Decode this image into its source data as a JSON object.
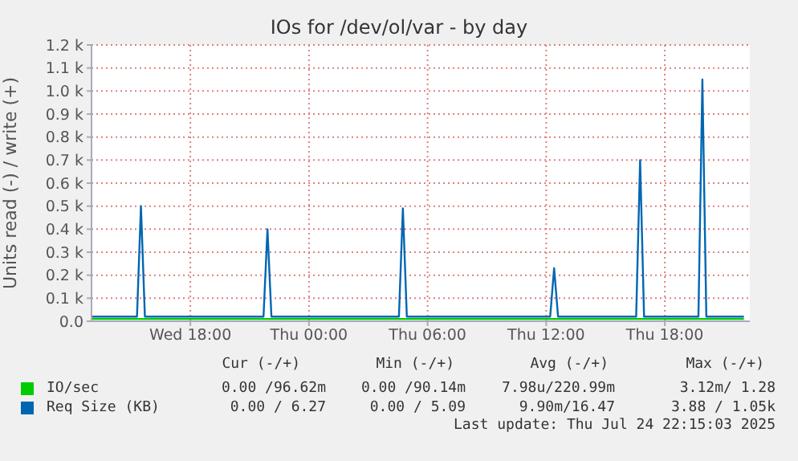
{
  "chart_data": {
    "type": "line",
    "title": "IOs for /dev/ol/var - by day",
    "ylabel": "Units read (-) / write (+)",
    "x": [
      "2025-07-23T13:00",
      "2025-07-23T15:18",
      "2025-07-23T15:30",
      "2025-07-23T15:42",
      "2025-07-23T21:42",
      "2025-07-23T21:54",
      "2025-07-23T22:06",
      "2025-07-24T04:33",
      "2025-07-24T04:45",
      "2025-07-24T04:57",
      "2025-07-24T12:12",
      "2025-07-24T12:24",
      "2025-07-24T12:36",
      "2025-07-24T16:33",
      "2025-07-24T16:45",
      "2025-07-24T16:57",
      "2025-07-24T19:42",
      "2025-07-24T19:54",
      "2025-07-24T20:06",
      "2025-07-24T22:00"
    ],
    "series": [
      {
        "name": "IO/sec",
        "color": "#00cc00",
        "values": [
          0.01,
          0.01,
          0.01,
          0.01,
          0.01,
          0.01,
          0.01,
          0.01,
          0.01,
          0.01,
          0.01,
          0.01,
          0.01,
          0.01,
          0.01,
          0.01,
          0.01,
          0.01,
          0.01,
          0.01
        ]
      },
      {
        "name": "Req Size (KB)",
        "color": "#0066b3",
        "values": [
          0.02,
          0.02,
          0.5,
          0.02,
          0.02,
          0.4,
          0.02,
          0.02,
          0.49,
          0.02,
          0.02,
          0.23,
          0.02,
          0.02,
          0.7,
          0.02,
          0.02,
          1.05,
          0.02,
          0.02
        ]
      }
    ],
    "xlim": [
      "2025-07-23T13:00",
      "2025-07-24T22:18"
    ],
    "xticks": [
      {
        "value": "2025-07-23T18:00",
        "label": "Wed 18:00"
      },
      {
        "value": "2025-07-24T00:00",
        "label": "Thu 00:00"
      },
      {
        "value": "2025-07-24T06:00",
        "label": "Thu 06:00"
      },
      {
        "value": "2025-07-24T12:00",
        "label": "Thu 12:00"
      },
      {
        "value": "2025-07-24T18:00",
        "label": "Thu 18:00"
      }
    ],
    "ylim": [
      0,
      1.2
    ],
    "yticks": [
      {
        "value": 0,
        "label": "0.0"
      },
      {
        "value": 0.1,
        "label": "0.1 k"
      },
      {
        "value": 0.2,
        "label": "0.2 k"
      },
      {
        "value": 0.3,
        "label": "0.3 k"
      },
      {
        "value": 0.4,
        "label": "0.4 k"
      },
      {
        "value": 0.5,
        "label": "0.5 k"
      },
      {
        "value": 0.6,
        "label": "0.6 k"
      },
      {
        "value": 0.7,
        "label": "0.7 k"
      },
      {
        "value": 0.8,
        "label": "0.8 k"
      },
      {
        "value": 0.9,
        "label": "0.9 k"
      },
      {
        "value": 1.0,
        "label": "1.0 k"
      },
      {
        "value": 1.1,
        "label": "1.1 k"
      },
      {
        "value": 1.2,
        "label": "1.2 k"
      }
    ],
    "grid": true,
    "legend": "bottom",
    "marker": "none",
    "line_style": "solid",
    "annotations": [
      "Cur (-/+)",
      "Min (-/+)",
      "Avg (-/+)",
      "Max (-/+)",
      "0.00 /96.62m",
      "0.00 /90.14m",
      "7.98u/220.99m",
      "3.12m/ 1.28",
      "0.00 / 6.27",
      "0.00 / 5.09",
      "9.90m/16.47",
      "3.88 / 1.05k",
      "Last update: Thu Jul 24 22:15:03 2025"
    ]
  }
}
